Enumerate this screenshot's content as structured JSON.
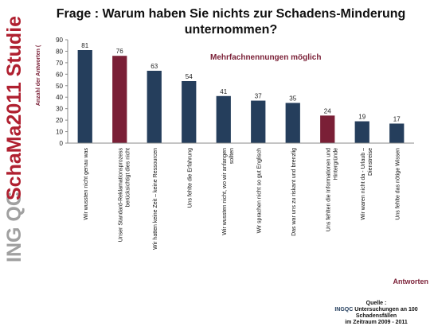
{
  "sidebar": {
    "brand_prefix": "ING QC",
    "brand_name": "SchaMa2011 Studie"
  },
  "title": "Frage : Warum haben Sie nichts zur Schadens-Minderung unternommen?",
  "source": {
    "label": "Quelle :",
    "brand": "INGQC",
    "line1": "Untersuchungen an 100 Schadensfällen",
    "line2": "im Zeitraum 2009 - 2011"
  },
  "colors": {
    "bar_primary": "#253e5c",
    "bar_highlight": "#7a1f36",
    "annotation": "#7a1f36",
    "axis_title": "#7a1f36",
    "sidebar_gray": "#a0a0a0",
    "sidebar_red": "#b02030"
  },
  "chart_data": {
    "type": "bar",
    "title": "Frage : Warum haben Sie nichts zur Schadens-Minderung unternommen?",
    "ylabel": "Anzahl der Antworten (",
    "xlabel": "Antworten",
    "ylim": [
      0,
      90
    ],
    "yticks": [
      0,
      10,
      20,
      30,
      40,
      50,
      60,
      70,
      80,
      90
    ],
    "grid": false,
    "annotation": "Mehrfachnennungen möglich",
    "categories": [
      "Wir wussten nicht genau was",
      "Unser Standard-Reklamationsprozess berücksichtigt dies nicht",
      "Wir hatten keine Zeit – keine Ressourcen",
      "Uns fehlte die Erfahrung",
      "Wir wussten nicht, wo wir anfangen sollten",
      "Wir sprachen nicht so gut Englisch",
      "Das war uns zu riskant und brenzlig",
      "Uns fehlten die Informationen und Hintergründe",
      "Wir waren nicht da - Urlaub – Dienstreise",
      "Uns fehlte das nötige Wissen"
    ],
    "values": [
      81,
      76,
      63,
      54,
      41,
      37,
      35,
      24,
      19,
      17
    ],
    "highlighted": [
      false,
      true,
      false,
      false,
      false,
      false,
      false,
      true,
      false,
      false
    ]
  }
}
